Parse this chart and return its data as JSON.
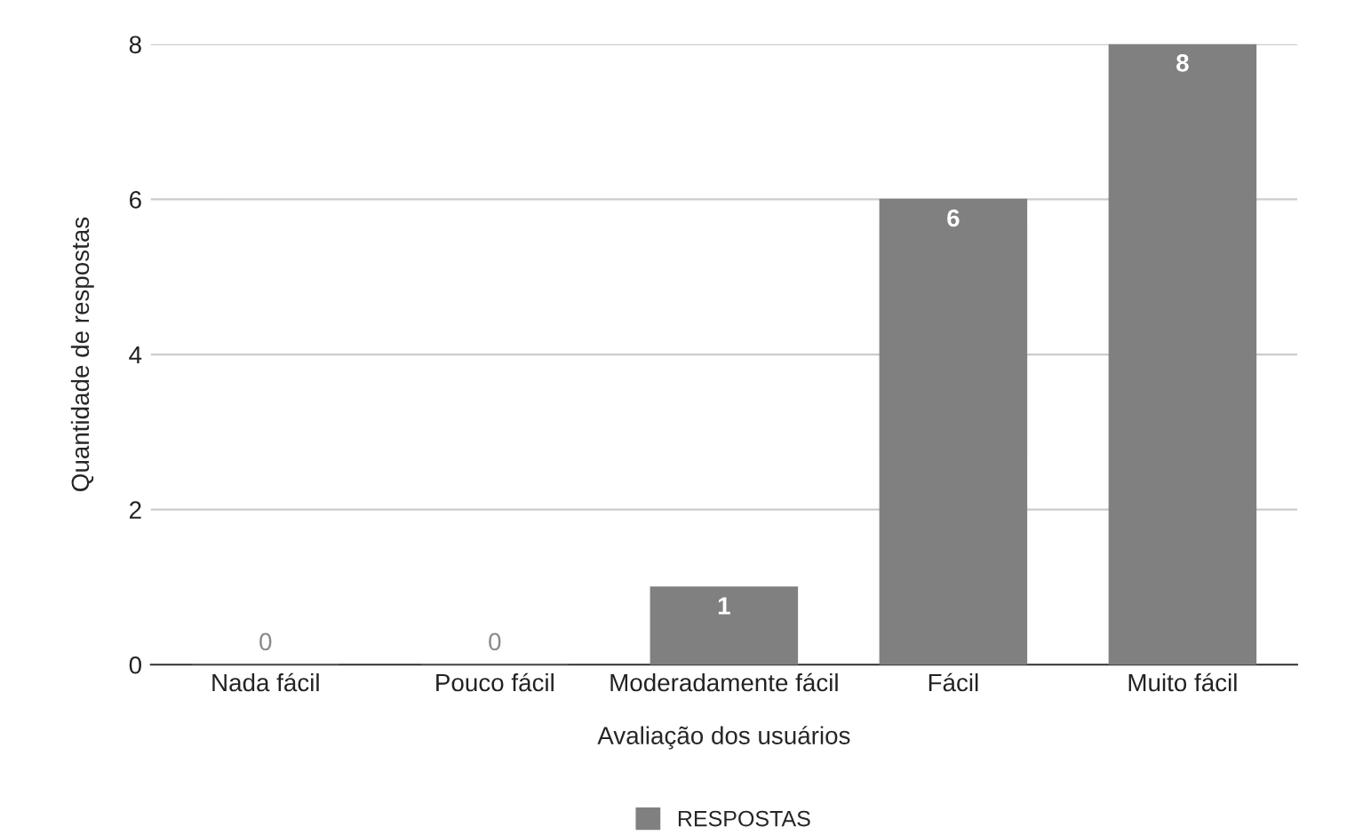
{
  "chart_data": {
    "type": "bar",
    "xlabel": "Avaliação dos usuários",
    "ylabel": "Quantidade de respostas",
    "categories": [
      "Nada fácil",
      "Pouco fácil",
      "Moderadamente fácil",
      "Fácil",
      "Muito fácil"
    ],
    "series": [
      {
        "name": "RESPOSTAS",
        "color": "#808080",
        "values": [
          0,
          0,
          1,
          6,
          8
        ]
      }
    ],
    "ylim": [
      0,
      8
    ],
    "yticks": [
      0,
      2,
      4,
      6,
      8
    ],
    "grid": "y",
    "legend": "bottom",
    "data_labels": true
  }
}
